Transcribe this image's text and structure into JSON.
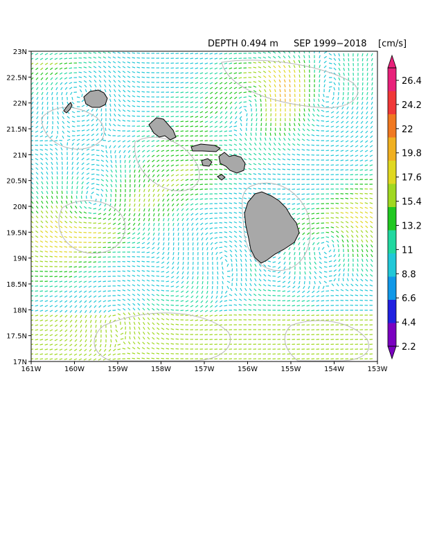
{
  "title": {
    "depth": "DEPTH  0.494 m",
    "period": "SEP  1999−2018",
    "units": "[cm/s]"
  },
  "map": {
    "lon_range": [
      -161,
      -153
    ],
    "lat_range": [
      17,
      23
    ],
    "x_ticks": [
      "161W",
      "160W",
      "159W",
      "158W",
      "157W",
      "156W",
      "155W",
      "154W",
      "153W"
    ],
    "y_ticks": [
      "17N",
      "17.5N",
      "18N",
      "18.5N",
      "19N",
      "19.5N",
      "20N",
      "20.5N",
      "21N",
      "21.5N",
      "22N",
      "22.5N",
      "23N"
    ],
    "land_color": "#a8a8a8",
    "contour_color": "#b8b8b8",
    "field_description_colors": "arrows colored by speed (cm/s)"
  },
  "colorbar": {
    "labels": [
      "26.4",
      "24.2",
      "22",
      "19.8",
      "17.6",
      "15.4",
      "13.2",
      "11",
      "8.8",
      "6.6",
      "4.4",
      "2.2"
    ],
    "colors": [
      "#7a00c0",
      "#2020e0",
      "#1098e8",
      "#20c8d8",
      "#20d8a0",
      "#20c820",
      "#a0d820",
      "#e0d820",
      "#f0b020",
      "#f07820",
      "#f03838",
      "#e8207a"
    ]
  }
}
